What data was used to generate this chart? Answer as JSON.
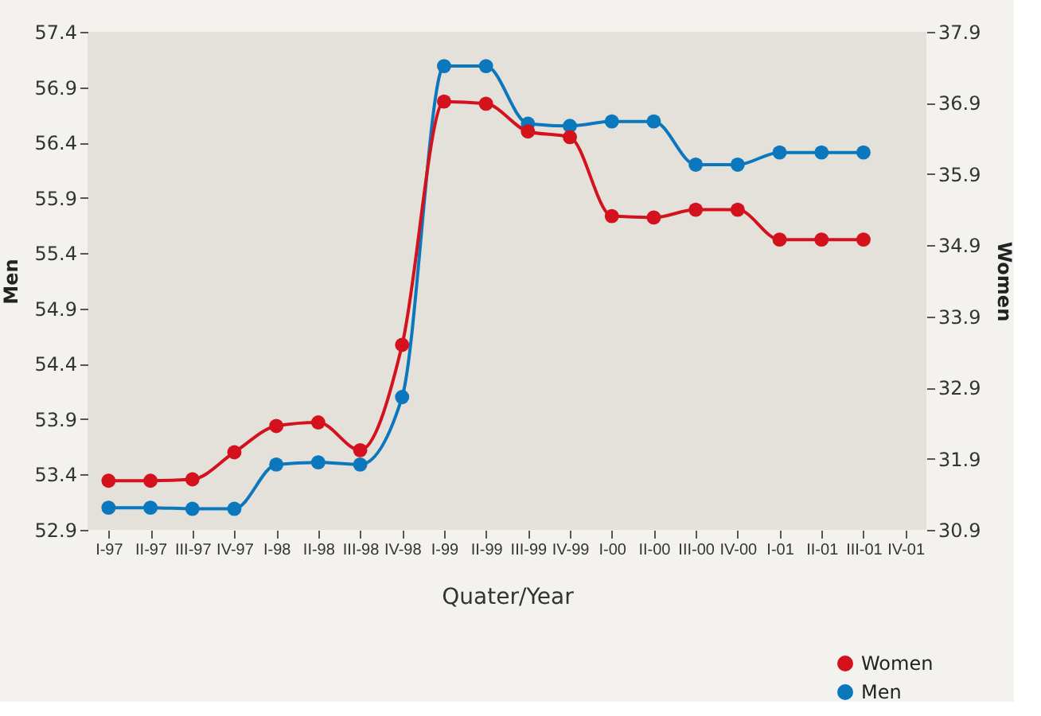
{
  "chart_data": {
    "type": "line",
    "xlabel": "Quater/Year",
    "ylabel": "Men",
    "y2label": "Women",
    "categories": [
      "I-97",
      "II-97",
      "III-97",
      "IV-97",
      "I-98",
      "II-98",
      "III-98",
      "IV-98",
      "I-99",
      "II-99",
      "III-99",
      "IV-99",
      "I-00",
      "II-00",
      "III-00",
      "IV-00",
      "I-01",
      "II-01",
      "III-01",
      "IV-01"
    ],
    "ylim": [
      52.9,
      57.4
    ],
    "yticks": [
      52.9,
      53.4,
      53.9,
      54.4,
      54.9,
      55.4,
      55.9,
      56.4,
      56.9,
      57.4
    ],
    "y2lim": [
      30.9,
      37.9
    ],
    "y2ticks": [
      30.9,
      31.9,
      32.9,
      33.9,
      34.9,
      35.9,
      36.9,
      37.9
    ],
    "series": [
      {
        "name": "Women",
        "color": "#d4121e",
        "axis": "y2",
        "values": [
          31.59,
          31.59,
          31.61,
          31.99,
          32.36,
          32.41,
          32.02,
          33.5,
          36.92,
          36.89,
          36.5,
          36.42,
          35.31,
          35.29,
          35.4,
          35.4,
          34.98,
          34.98,
          34.98,
          null
        ]
      },
      {
        "name": "Men",
        "color": "#0b78bd",
        "values": [
          53.1,
          53.1,
          53.09,
          53.09,
          53.49,
          53.51,
          53.49,
          54.1,
          57.09,
          57.09,
          56.57,
          56.55,
          56.59,
          56.59,
          56.2,
          56.2,
          56.31,
          56.31,
          56.31,
          null
        ]
      }
    ],
    "marker": "circle",
    "line_style": "solid",
    "grid": false,
    "legend": "bottom right"
  }
}
